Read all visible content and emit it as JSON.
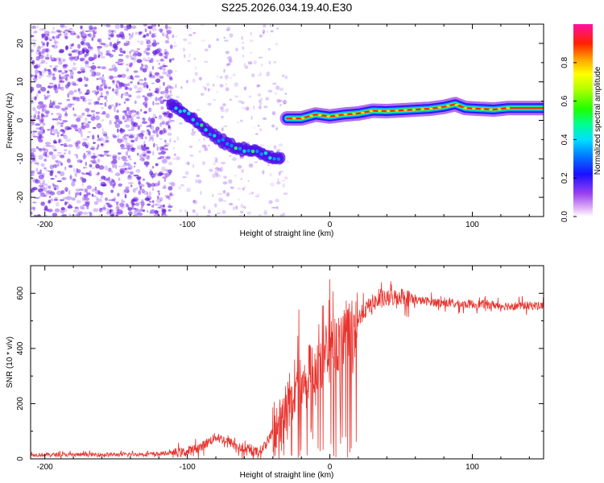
{
  "title": "S225.2026.034.19.40.E30",
  "colors": {
    "snr_line": "#e8342e",
    "speckle": "#8a3ff0",
    "speckle_dark": "#5a10d8",
    "axis": "#000000"
  },
  "chart_data": [
    {
      "type": "heatmap",
      "name": "spectrogram",
      "xlabel": "Height of straight line (km)",
      "ylabel": "Frequency (Hz)",
      "xlim": [
        -210,
        150
      ],
      "ylim": [
        -25,
        25
      ],
      "xticks": [
        -200,
        -100,
        0,
        100
      ],
      "yticks": [
        -20,
        -10,
        0,
        10,
        20
      ],
      "colorbar": {
        "label": "Normalized spectral amplitude",
        "range": [
          0,
          1
        ],
        "ticks": [
          "0.0",
          "0.2",
          "0.4",
          "0.6",
          "0.8"
        ]
      },
      "ridge": [
        {
          "x": -112,
          "freq": 4.5
        },
        {
          "x": -100,
          "freq": 1.5
        },
        {
          "x": -90,
          "freq": -1.5
        },
        {
          "x": -80,
          "freq": -4.5
        },
        {
          "x": -70,
          "freq": -6.5
        },
        {
          "x": -60,
          "freq": -7.5
        },
        {
          "x": -50,
          "freq": -8.5
        },
        {
          "x": -40,
          "freq": -9.5
        },
        {
          "x": -33,
          "freq": -9.5
        },
        {
          "x": -30,
          "freq": 0.5
        },
        {
          "x": -20,
          "freq": 0.5
        },
        {
          "x": -10,
          "freq": 1.5
        },
        {
          "x": 0,
          "freq": 1.0
        },
        {
          "x": 10,
          "freq": 1.5
        },
        {
          "x": 20,
          "freq": 1.8
        },
        {
          "x": 30,
          "freq": 2.5
        },
        {
          "x": 40,
          "freq": 2.4
        },
        {
          "x": 50,
          "freq": 2.6
        },
        {
          "x": 60,
          "freq": 2.8
        },
        {
          "x": 70,
          "freq": 3.0
        },
        {
          "x": 80,
          "freq": 3.5
        },
        {
          "x": 88,
          "freq": 4.2
        },
        {
          "x": 95,
          "freq": 3.2
        },
        {
          "x": 105,
          "freq": 3.0
        },
        {
          "x": 115,
          "freq": 2.8
        },
        {
          "x": 125,
          "freq": 3.2
        },
        {
          "x": 150,
          "freq": 3.2
        }
      ]
    },
    {
      "type": "line",
      "name": "snr",
      "xlabel": "Height of straight line (km)",
      "ylabel": "SNR (10 * v/v)",
      "xlim": [
        -210,
        150
      ],
      "ylim": [
        0,
        700
      ],
      "xticks": [
        -200,
        -100,
        0,
        100
      ],
      "yticks": [
        0,
        200,
        400,
        600
      ],
      "series": [
        {
          "name": "SNR",
          "x": [
            -210,
            -180,
            -150,
            -120,
            -100,
            -90,
            -80,
            -70,
            -60,
            -50,
            -45,
            -40,
            -35,
            -30,
            -25,
            -20,
            -15,
            -10,
            -5,
            0,
            5,
            10,
            15,
            20,
            25,
            30,
            40,
            50,
            60,
            70,
            80,
            90,
            100,
            110,
            120,
            130,
            140,
            150
          ],
          "values": [
            15,
            15,
            15,
            18,
            25,
            45,
            80,
            60,
            30,
            25,
            50,
            100,
            150,
            200,
            250,
            280,
            300,
            330,
            350,
            370,
            400,
            440,
            470,
            510,
            540,
            565,
            580,
            590,
            575,
            570,
            565,
            560,
            560,
            560,
            555,
            555,
            555,
            555
          ]
        }
      ]
    }
  ]
}
